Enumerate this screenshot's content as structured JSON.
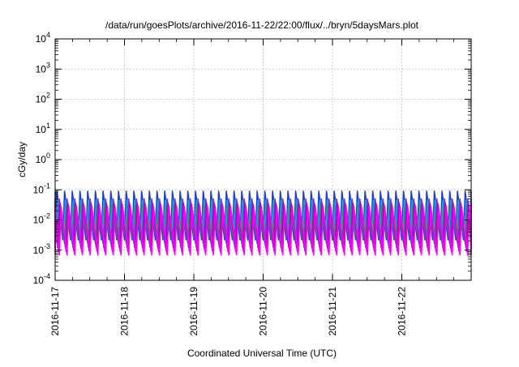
{
  "chart_data": {
    "type": "line",
    "title": "/data/run/goesPlots/archive/2016-11-22/22:00/flux/../bryn/5daysMars.plot",
    "xlabel": "Coordinated Universal Time (UTC)",
    "ylabel": "cGy/day",
    "x_ticks": [
      "2016-11-17",
      "2016-11-18",
      "2016-11-19",
      "2016-11-20",
      "2016-11-21",
      "2016-11-22"
    ],
    "x_range": [
      "2016-11-17T00:00",
      "2016-11-23T00:00"
    ],
    "y_scale": "log",
    "ylim": [
      0.0001,
      10000
    ],
    "y_ticks": [
      {
        "base": "10",
        "exp": "-4"
      },
      {
        "base": "10",
        "exp": "-3"
      },
      {
        "base": "10",
        "exp": "-2"
      },
      {
        "base": "10",
        "exp": "-1"
      },
      {
        "base": "10",
        "exp": "0"
      },
      {
        "base": "10",
        "exp": "1"
      },
      {
        "base": "10",
        "exp": "2"
      },
      {
        "base": "10",
        "exp": "3"
      },
      {
        "base": "10",
        "exp": "4"
      }
    ],
    "grid": true,
    "cycles_per_day": 9,
    "series": [
      {
        "color": "#1a3fd6",
        "peak": 0.09,
        "trough": 0.0022
      },
      {
        "color": "#00b4c8",
        "peak": 0.045,
        "trough": 0.0035
      },
      {
        "color": "#2e8b57",
        "peak": 0.03,
        "trough": 0.0017
      },
      {
        "color": "#8a2be2",
        "peak": 0.05,
        "trough": 0.0012
      },
      {
        "color": "#b000b0",
        "peak": 0.035,
        "trough": 0.0009
      },
      {
        "color": "#ff00ff",
        "peak": 0.028,
        "trough": 0.0007
      }
    ]
  }
}
